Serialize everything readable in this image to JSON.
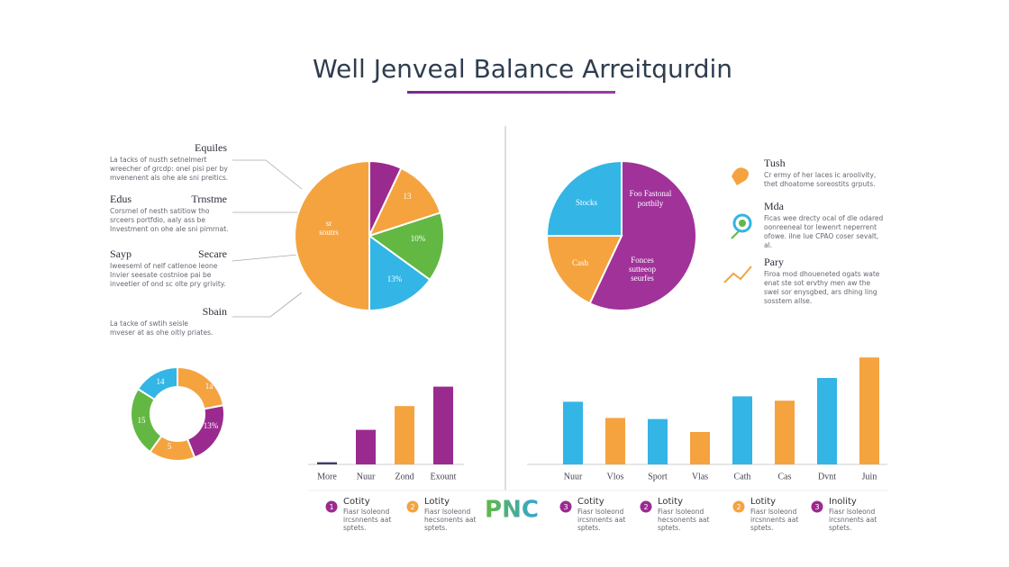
{
  "header": {
    "title": "Well Jenveal Balance Arreitqurdin"
  },
  "left_notes": [
    {
      "headings": [
        "Equiles"
      ],
      "lines": [
        "La tacks of nusth setnelmert",
        "wreecher of grcdp: onel pisi per by",
        "mvenenent als ohe ale sni preitics."
      ]
    },
    {
      "headings": [
        "Edus",
        "Trnstme"
      ],
      "lines": [
        "Corsrnel of nesth satitiow tho",
        "srceers portfdio, aaly ass be",
        "Investment on ohe ale sni pimrnat."
      ]
    },
    {
      "headings": [
        "Sayp",
        "Secare"
      ],
      "lines": [
        "Iweeseml of nelf catlenoe leone",
        "Invier seesate costnioe pai be",
        "inveetier of ond sc olte pry grivity."
      ]
    },
    {
      "headings": [
        "Sbain"
      ],
      "lines": [
        "La tacke of swtih seisle",
        "mveser at as ohe oitly priates."
      ]
    }
  ],
  "right_notes": [
    {
      "heading": "Tush",
      "lines": [
        "Cr ermy of her laces ic aroolivity,",
        "thet dhoatome soreostits grputs."
      ]
    },
    {
      "heading": "Mda",
      "lines": [
        "Ficas wee drecty ocal of dle odared",
        "oonreeneal tor lewenrt neperrent",
        "ofowe. ilne lue CPAO coser sevalt,",
        "al."
      ]
    },
    {
      "heading": "Pary",
      "lines": [
        "Firoa mod dhoueneted ogats wate",
        "enat ste sot ervthy men aw the",
        "swel sor enysgbed, ars dhing ling",
        "sosstem allse."
      ]
    }
  ],
  "legend_items": [
    {
      "number": 1,
      "title": "Cotity",
      "lines": [
        "Fiasr lsoleond",
        "ircsnnents aat",
        "sptets."
      ]
    },
    {
      "number": 2,
      "title": "Lotity",
      "lines": [
        "Fiasr lsoleond",
        "hecsonents aat",
        "sptets."
      ]
    },
    {
      "number": 3,
      "title": "Cotity",
      "lines": [
        "Fiasr lsoleond",
        "ircsnnents aat",
        "sptets."
      ]
    },
    {
      "number": 2,
      "title": "Lotity",
      "lines": [
        "Fiasr lsoleond",
        "hecsonents aat",
        "sptets."
      ]
    },
    {
      "number": 2,
      "title": "Lotity",
      "lines": [
        "Fiasr lsoleond",
        "ircsnnents aat",
        "sptets."
      ]
    },
    {
      "number": 3,
      "title": "Inolity",
      "lines": [
        "Fiasr lsoleond",
        "ircsnnents aat",
        "sptets."
      ]
    }
  ],
  "logo": "PNC",
  "chart_data": [
    {
      "type": "pie",
      "categories": [
        null,
        "13",
        "10%",
        "13%",
        "sr soutrs"
      ],
      "values": [
        7,
        13,
        15,
        15,
        50
      ],
      "colors": [
        "#9b2a8f",
        "#f5a33f",
        "#62b843",
        "#33b5e5",
        "#f5a33f"
      ]
    },
    {
      "type": "donut",
      "categories": [
        "1a",
        "13%",
        "5",
        "15",
        "14"
      ],
      "values": [
        22,
        22,
        16,
        24,
        16
      ],
      "colors": [
        "#f5a33f",
        "#9b2a8f",
        "#f5a33f",
        "#62b843",
        "#33b5e5"
      ]
    },
    {
      "type": "bar",
      "categories": [
        "More",
        "Nuur",
        "Zond",
        "Exount"
      ],
      "values": [
        2,
        32,
        54,
        72
      ],
      "ylim": [
        0,
        100
      ],
      "colors": [
        "#3d3d6b",
        "#9b2a8f",
        "#f5a33f",
        "#9b2a8f"
      ]
    },
    {
      "type": "pie",
      "categories": [
        "Fonces sutteeop seurfes",
        "Cash",
        "Stocks"
      ],
      "values": [
        57,
        18,
        25
      ],
      "colors": [
        "#a0329a",
        "#f5a33f",
        "#33b5e5"
      ],
      "annotation": "Foo Fastonal portbily"
    },
    {
      "type": "bar",
      "categories": [
        "Nuur",
        "Vlos",
        "Sport",
        "Vlas",
        "Cath",
        "Cas",
        "Dvnt",
        "Juin"
      ],
      "values": [
        58,
        43,
        42,
        30,
        63,
        59,
        80,
        99
      ],
      "ylim": [
        0,
        100
      ],
      "colors": [
        "#33b5e5",
        "#f5a33f",
        "#33b5e5",
        "#f5a33f",
        "#33b5e5",
        "#f5a33f",
        "#33b5e5",
        "#f5a33f"
      ]
    }
  ]
}
